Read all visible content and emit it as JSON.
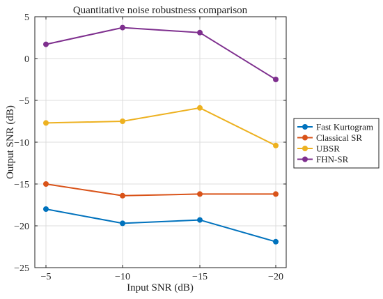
{
  "chart_data": {
    "type": "line",
    "title": "Quantitative noise robustness comparison",
    "xlabel": "Input SNR (dB)",
    "ylabel": "Output SNR (dB)",
    "x": [
      -5,
      -10,
      -15,
      -20
    ],
    "x_tick_labels": [
      "−5",
      "−10",
      "−15",
      "−20"
    ],
    "y_ticks": [
      5,
      0,
      -5,
      -10,
      -15,
      -20,
      -25
    ],
    "y_tick_labels": [
      "5",
      "0",
      "−5",
      "−10",
      "−15",
      "−20",
      "−25"
    ],
    "ylim": [
      -25,
      5
    ],
    "grid": true,
    "legend_position": "right",
    "series": [
      {
        "name": "Fast Kurtogram",
        "color": "#0072BD",
        "values": [
          -18.0,
          -19.7,
          -19.3,
          -21.9
        ]
      },
      {
        "name": "Classical SR",
        "color": "#D95319",
        "values": [
          -15.0,
          -16.4,
          -16.2,
          -16.2
        ]
      },
      {
        "name": "UBSR",
        "color": "#EDB120",
        "values": [
          -7.7,
          -7.5,
          -5.9,
          -10.4
        ]
      },
      {
        "name": "FHN-SR",
        "color": "#7E2F8E",
        "values": [
          1.7,
          3.7,
          3.1,
          -2.5
        ]
      }
    ]
  }
}
